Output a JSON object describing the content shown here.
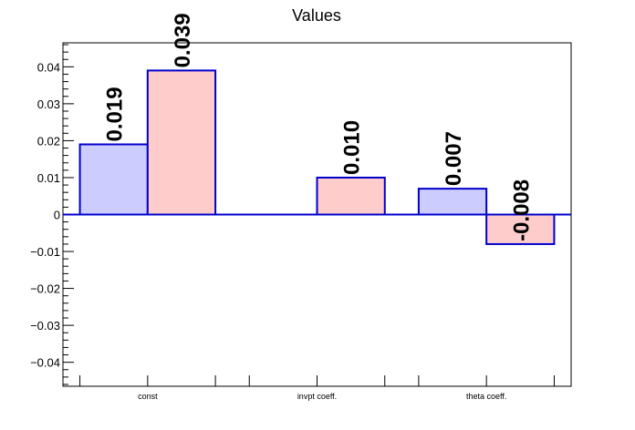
{
  "chart_data": {
    "type": "bar",
    "title": "Values",
    "xlabel": "",
    "ylabel": "",
    "ylim": [
      -0.0465,
      0.0465
    ],
    "yticks": [
      -0.04,
      -0.03,
      -0.02,
      -0.01,
      0,
      0.01,
      0.02,
      0.03,
      0.04
    ],
    "ytick_labels": [
      "−0.04",
      "−0.03",
      "−0.02",
      "−0.01",
      "0",
      "0.01",
      "0.02",
      "0.03",
      "0.04"
    ],
    "categories": [
      "const",
      "invpt coeff.",
      "theta coeff."
    ],
    "grid": false,
    "series": [
      {
        "values": [
          0.019,
          null,
          0.007
        ],
        "labels": [
          "0.019",
          "",
          "0.007"
        ],
        "fill": "#ccccff",
        "stroke": "#0000cc"
      },
      {
        "values": [
          0.039,
          0.01,
          -0.008
        ],
        "labels": [
          "0.039",
          "0.010",
          "-0.008"
        ],
        "fill": "#ffcccc",
        "stroke": "#0000cc"
      }
    ]
  }
}
